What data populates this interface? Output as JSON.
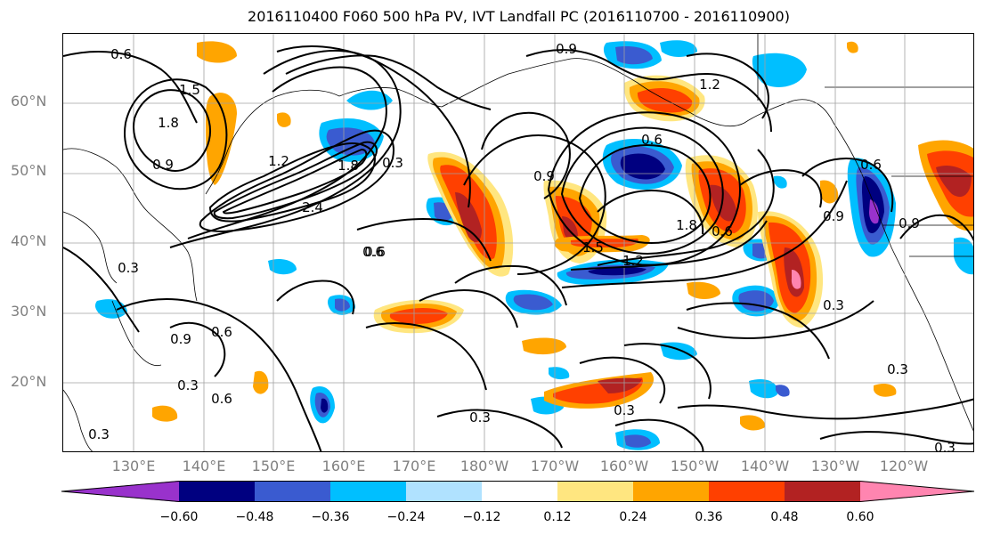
{
  "title": "2016110400 F060 500 hPa PV, IVT Landfall PC (2016110700 - 2016110900)",
  "lat_labels": [
    "60°N",
    "50°N",
    "40°N",
    "30°N",
    "20°N"
  ],
  "lon_labels": [
    "130°E",
    "140°E",
    "150°E",
    "160°E",
    "170°E",
    "180°W",
    "170°W",
    "160°W",
    "150°W",
    "140°W",
    "130°W",
    "120°W"
  ],
  "contour_labels": [
    "0.6",
    "0.9",
    "1.5",
    "1.8",
    "1.2",
    "2.4",
    "1.8",
    "0.9",
    "0.3",
    "0.6",
    "0.9",
    "0.3",
    "0.6",
    "0.9",
    "0.3",
    "0.6",
    "0.3",
    "0.3",
    "0.3",
    "1.2",
    "0.6",
    "0.9",
    "1.8",
    "1.5",
    "1.2",
    "0.6",
    "0.6",
    "0.9",
    "0.3",
    "0.3",
    "0.3",
    "0.6"
  ],
  "colorbar": {
    "tick_labels": [
      "−0.60",
      "−0.48",
      "−0.36",
      "−0.24",
      "−0.12",
      "0.12",
      "0.24",
      "0.36",
      "0.48",
      "0.60"
    ],
    "colors": [
      "#9932cc",
      "#000080",
      "#3a5bd0",
      "#00bfff",
      "#b0e2ff",
      "#ffffff",
      "#ffe680",
      "#ffa500",
      "#ff4000",
      "#b22222",
      "#ff85b0"
    ],
    "extend": "both"
  },
  "shading_colors": {
    "neg_1": "#00bfff",
    "neg_2": "#3a5bd0",
    "neg_3": "#000080",
    "neg_4": "#9932cc",
    "neg_light": "#b0e2ff",
    "pos_light": "#ffe680",
    "pos_1": "#ffa500",
    "pos_2": "#ff4000",
    "pos_3": "#b22222",
    "pos_4": "#ff85b0"
  },
  "contour_interval": 0.3,
  "projection": "equirectangular",
  "gridlines": true
}
